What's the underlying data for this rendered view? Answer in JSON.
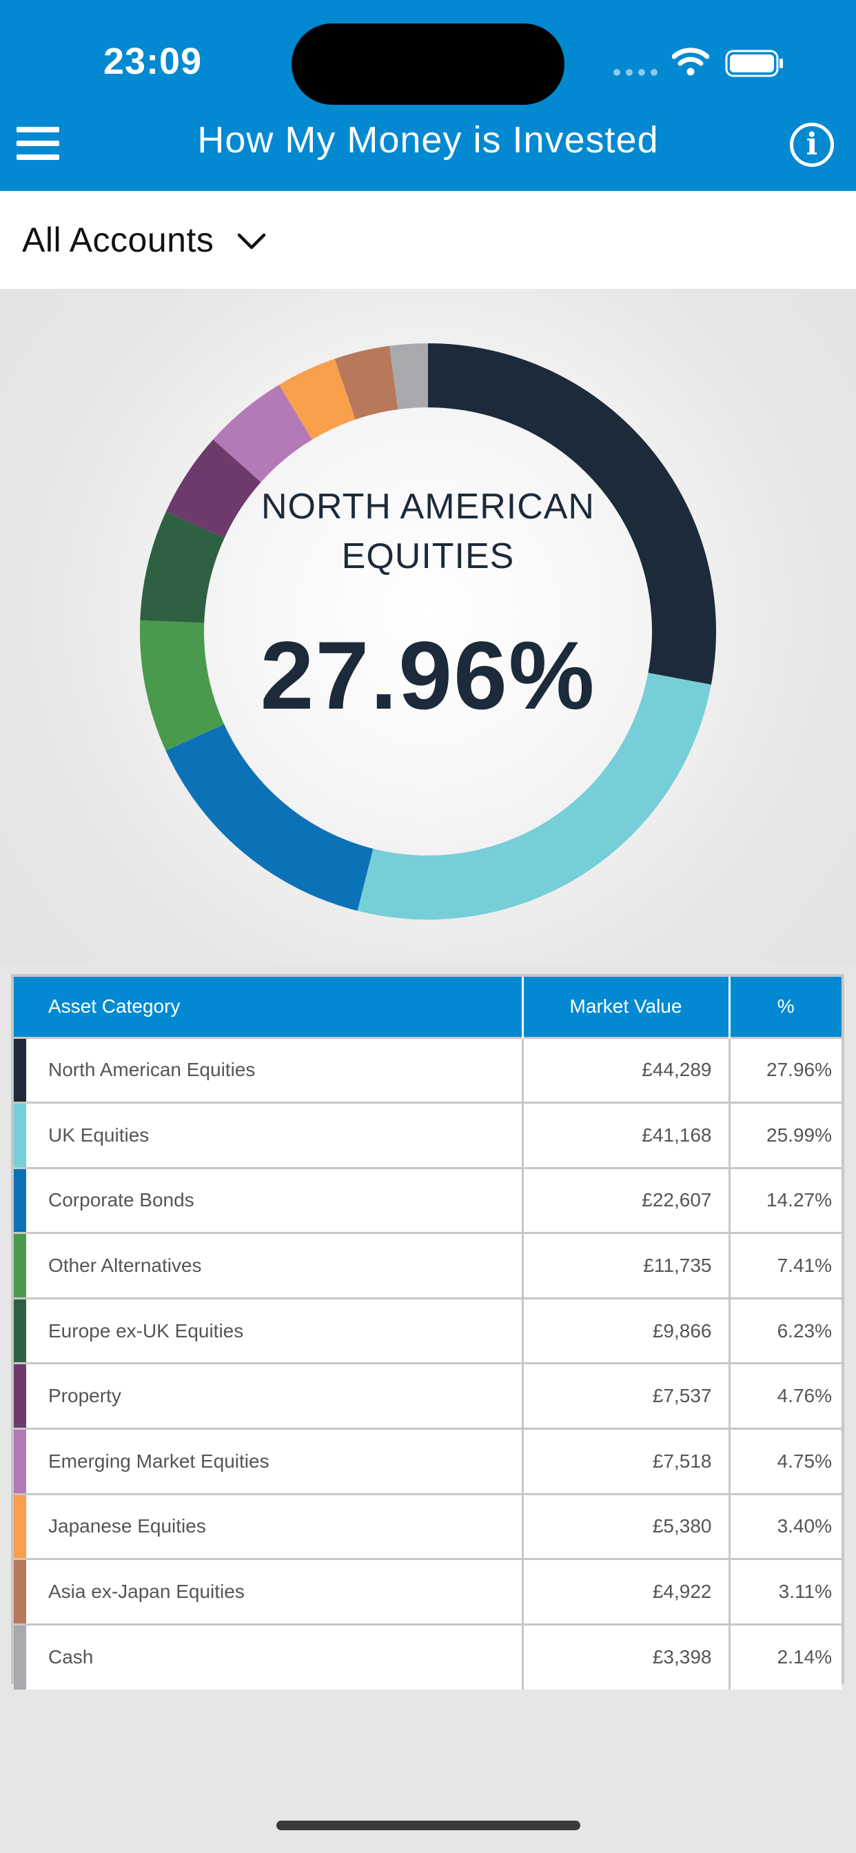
{
  "status_bar": {
    "time": "23:09"
  },
  "header": {
    "title": "How My Money is Invested"
  },
  "account_selector": {
    "label": "All Accounts"
  },
  "chart_data": {
    "type": "pie",
    "highlight": {
      "label_line1": "NORTH AMERICAN",
      "label_line2": "EQUITIES",
      "value": "27.96%"
    },
    "slices": [
      {
        "label": "North American Equities",
        "value": 27.96,
        "color": "#1c2a3a"
      },
      {
        "label": "UK Equities",
        "value": 25.99,
        "color": "#76ced9"
      },
      {
        "label": "Corporate Bonds",
        "value": 14.27,
        "color": "#0c72b8"
      },
      {
        "label": "Other Alternatives",
        "value": 7.41,
        "color": "#4a9a4d"
      },
      {
        "label": "Europe ex-UK Equities",
        "value": 6.23,
        "color": "#2f6042"
      },
      {
        "label": "Property",
        "value": 4.76,
        "color": "#6e3a6b"
      },
      {
        "label": "Emerging Market Equities",
        "value": 4.75,
        "color": "#b47ab7"
      },
      {
        "label": "Japanese Equities",
        "value": 3.4,
        "color": "#f8a04c"
      },
      {
        "label": "Asia ex-Japan Equities",
        "value": 3.11,
        "color": "#b8785a"
      },
      {
        "label": "Cash",
        "value": 2.14,
        "color": "#a8a9ad"
      }
    ]
  },
  "table": {
    "headers": [
      "Asset Category",
      "Market Value",
      "%"
    ],
    "rows": [
      {
        "category": "North American Equities",
        "value": "£44,289",
        "pct": "27.96%",
        "color": "#1c2a3a"
      },
      {
        "category": "UK Equities",
        "value": "£41,168",
        "pct": "25.99%",
        "color": "#76ced9"
      },
      {
        "category": "Corporate Bonds",
        "value": "£22,607",
        "pct": "14.27%",
        "color": "#0c72b8"
      },
      {
        "category": "Other Alternatives",
        "value": "£11,735",
        "pct": "7.41%",
        "color": "#4a9a4d"
      },
      {
        "category": "Europe ex-UK Equities",
        "value": "£9,866",
        "pct": "6.23%",
        "color": "#2f6042"
      },
      {
        "category": "Property",
        "value": "£7,537",
        "pct": "4.76%",
        "color": "#6e3a6b"
      },
      {
        "category": "Emerging Market Equities",
        "value": "£7,518",
        "pct": "4.75%",
        "color": "#b47ab7"
      },
      {
        "category": "Japanese Equities",
        "value": "£5,380",
        "pct": "3.40%",
        "color": "#f8a04c"
      },
      {
        "category": "Asia ex-Japan Equities",
        "value": "£4,922",
        "pct": "3.11%",
        "color": "#b8785a"
      },
      {
        "category": "Cash",
        "value": "£3,398",
        "pct": "2.14%",
        "color": "#a8a9ad"
      }
    ]
  },
  "icons": {
    "menu": "menu-icon",
    "info": "info-icon",
    "chevron": "chevron-down-icon",
    "wifi": "wifi-icon",
    "battery": "battery-icon"
  },
  "colors": {
    "accent": "#0289d1"
  }
}
